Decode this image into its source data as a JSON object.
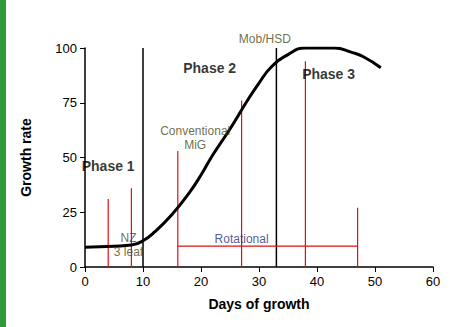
{
  "chart_data": {
    "type": "line",
    "x_label": "Days of growth",
    "y_label": "Growth rate",
    "x": [
      0,
      5,
      8,
      10,
      12,
      15,
      18,
      20,
      22,
      25,
      28,
      30,
      32,
      35,
      38,
      40,
      43,
      46,
      48,
      51
    ],
    "values": [
      9,
      9.5,
      10,
      12,
      16,
      24,
      34,
      42,
      51,
      63,
      76,
      84,
      91,
      97,
      100,
      100,
      100,
      98,
      96,
      91
    ],
    "color": "#000000",
    "xlim": [
      0,
      60
    ],
    "xticks": [
      0,
      10,
      20,
      30,
      40,
      50,
      60
    ],
    "ylim": [
      0,
      100
    ],
    "yticks": [
      0,
      25,
      50,
      75,
      100
    ],
    "grid": false,
    "phase_boundaries": {
      "color": "#000000",
      "x": [
        10,
        33
      ]
    },
    "phase_labels": [
      {
        "text": "Phase 1",
        "x": 4,
        "y": 46
      },
      {
        "text": "Phase 2",
        "x": 21.5,
        "y": 91
      },
      {
        "text": "Phase 3",
        "x": 42,
        "y": 88
      }
    ],
    "grazing_markers": {
      "color": "#e01010",
      "lines": [
        {
          "x": 4,
          "y": 31
        },
        {
          "x": 8,
          "y": 36
        },
        {
          "x": 16,
          "y": 53
        },
        {
          "x": 27,
          "y": 76
        },
        {
          "x": 38,
          "y": 94
        },
        {
          "x": 47,
          "y": 27
        }
      ]
    },
    "rotational_span": {
      "color": "#e01010",
      "x": [
        16,
        47
      ],
      "y": 9.5
    },
    "annotations": [
      {
        "text": "NZ\n3 leaf",
        "x": 7.5,
        "y": 10,
        "color": "#4a4a14"
      },
      {
        "text": "Conventional\nMiG",
        "x": 19,
        "y": 59,
        "color": "#4a4a14"
      },
      {
        "text": "Mob/HSD",
        "x": 31,
        "y": 104,
        "color": "#4a4a14"
      },
      {
        "text": "Rotational",
        "x": 27,
        "y": 13,
        "color": "#1f2f7a"
      }
    ]
  }
}
